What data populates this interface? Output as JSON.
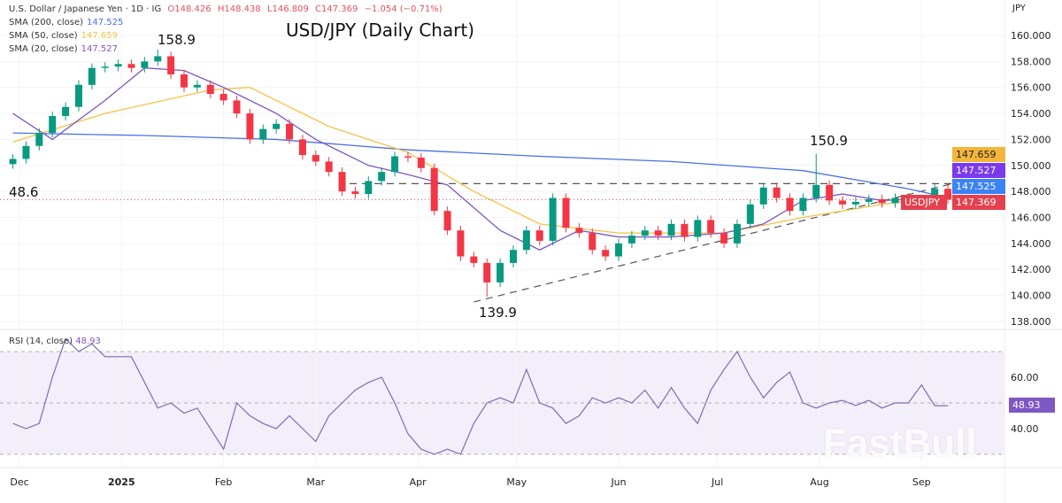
{
  "header": {
    "instrument": "U.S. Dollar / Japanese Yen · 1D · IG",
    "open": "O148.426",
    "high": "H148.438",
    "low": "L146.809",
    "close": "C147.369",
    "change": "−1.054 (−0.71%)",
    "sma200_label": "SMA (200, close)",
    "sma200_value": "147.525",
    "sma50_label": "SMA (50, close)",
    "sma50_value": "147.659",
    "sma20_label": "SMA (20, close)",
    "sma20_value": "147.527",
    "currency": "JPY",
    "rsi_label": "RSI (14, close)",
    "rsi_value": "48.93"
  },
  "watermark": "FastBull",
  "badges": {
    "sma50": "147.659",
    "sma20": "147.527",
    "sma200": "147.525",
    "symbol": "USDJPY",
    "last": "147.369",
    "rsi": "48.93"
  },
  "colors": {
    "up": "#089981",
    "down": "#f23645",
    "sma200": "#4a6fe3",
    "sma50": "#f3c245",
    "sma20": "#7e57c2",
    "rsi": "#7e6bb5"
  },
  "chart_data": {
    "type": "candlestick",
    "title": "USD/JPY (Daily Chart)",
    "ylim": [
      137,
      161.5
    ],
    "yticks": [
      "138.000",
      "140.000",
      "142.000",
      "144.000",
      "146.000",
      "148.000",
      "150.000",
      "152.000",
      "154.000",
      "156.000",
      "158.000",
      "160.000"
    ],
    "xticks": [
      {
        "date": "2024-12-01",
        "label": "Dec"
      },
      {
        "date": "2025-01-01",
        "label": "2025"
      },
      {
        "date": "2025-02-01",
        "label": "Feb"
      },
      {
        "date": "2025-03-01",
        "label": "Mar"
      },
      {
        "date": "2025-04-01",
        "label": "Apr"
      },
      {
        "date": "2025-05-01",
        "label": "May"
      },
      {
        "date": "2025-06-01",
        "label": "Jun"
      },
      {
        "date": "2025-07-01",
        "label": "Jul"
      },
      {
        "date": "2025-08-01",
        "label": "Aug"
      },
      {
        "date": "2025-09-01",
        "label": "Sep"
      }
    ],
    "dates": [
      "2024-11-29",
      "2024-12-03",
      "2024-12-07",
      "2024-12-11",
      "2024-12-15",
      "2024-12-19",
      "2024-12-23",
      "2024-12-27",
      "2024-12-31",
      "2025-01-04",
      "2025-01-08",
      "2025-01-12",
      "2025-01-16",
      "2025-01-20",
      "2025-01-24",
      "2025-01-28",
      "2025-02-01",
      "2025-02-05",
      "2025-02-09",
      "2025-02-13",
      "2025-02-17",
      "2025-02-21",
      "2025-02-25",
      "2025-03-01",
      "2025-03-05",
      "2025-03-09",
      "2025-03-13",
      "2025-03-17",
      "2025-03-21",
      "2025-03-25",
      "2025-03-29",
      "2025-04-02",
      "2025-04-06",
      "2025-04-10",
      "2025-04-14",
      "2025-04-18",
      "2025-04-22",
      "2025-04-26",
      "2025-04-30",
      "2025-05-04",
      "2025-05-08",
      "2025-05-12",
      "2025-05-16",
      "2025-05-20",
      "2025-05-24",
      "2025-05-28",
      "2025-06-01",
      "2025-06-05",
      "2025-06-09",
      "2025-06-13",
      "2025-06-17",
      "2025-06-21",
      "2025-06-25",
      "2025-06-29",
      "2025-07-03",
      "2025-07-07",
      "2025-07-11",
      "2025-07-15",
      "2025-07-19",
      "2025-07-23",
      "2025-07-27",
      "2025-07-31",
      "2025-08-04",
      "2025-08-08",
      "2025-08-12",
      "2025-08-16",
      "2025-08-20",
      "2025-08-24",
      "2025-08-28",
      "2025-09-01",
      "2025-09-05",
      "2025-09-09"
    ],
    "close": [
      150.5,
      151.5,
      152.5,
      153.8,
      154.5,
      156.2,
      157.5,
      157.6,
      157.8,
      157.5,
      158.0,
      158.4,
      157.0,
      156.0,
      156.2,
      155.5,
      155.0,
      154.0,
      152.0,
      152.8,
      153.2,
      152.0,
      150.8,
      150.3,
      149.5,
      148.0,
      147.8,
      148.8,
      149.5,
      150.7,
      150.6,
      149.8,
      146.5,
      145.0,
      143.0,
      142.5,
      141.0,
      142.5,
      143.5,
      145.0,
      144.2,
      147.5,
      145.2,
      144.8,
      143.5,
      143.0,
      144.0,
      144.6,
      145.0,
      144.6,
      145.5,
      144.5,
      145.8,
      144.8,
      144.0,
      145.5,
      147.0,
      148.3,
      147.5,
      146.5,
      147.5,
      148.5,
      147.3,
      147.0,
      147.2,
      147.4,
      147.1,
      147.5,
      147.0,
      147.2,
      148.2,
      147.369
    ],
    "high_overrides": {
      "11": 158.9,
      "61": 150.9
    },
    "low_overrides": {
      "36": 139.9
    },
    "sma200": {
      "dates": [
        "2024-11-29",
        "2025-01-08",
        "2025-02-17",
        "2025-03-29",
        "2025-05-08",
        "2025-06-17",
        "2025-07-27",
        "2025-08-28",
        "2025-09-09"
      ],
      "values": [
        152.5,
        152.3,
        152.0,
        151.2,
        150.7,
        150.3,
        149.6,
        148.2,
        147.525
      ]
    },
    "sma50": {
      "dates": [
        "2024-11-29",
        "2024-12-27",
        "2025-01-28",
        "2025-02-09",
        "2025-03-05",
        "2025-03-29",
        "2025-04-18",
        "2025-05-08",
        "2025-06-01",
        "2025-07-03",
        "2025-07-27",
        "2025-08-20",
        "2025-09-09"
      ],
      "values": [
        151.8,
        154.0,
        155.8,
        156.0,
        153.0,
        151.0,
        148.0,
        145.5,
        144.8,
        144.8,
        146.0,
        147.0,
        147.659
      ]
    },
    "sma20": {
      "dates": [
        "2024-11-29",
        "2024-12-11",
        "2024-12-27",
        "2025-01-08",
        "2025-01-20",
        "2025-02-01",
        "2025-02-17",
        "2025-03-01",
        "2025-03-17",
        "2025-03-29",
        "2025-04-10",
        "2025-04-26",
        "2025-05-08",
        "2025-05-20",
        "2025-06-01",
        "2025-06-17",
        "2025-07-03",
        "2025-07-15",
        "2025-07-27",
        "2025-08-08",
        "2025-08-20",
        "2025-09-09"
      ],
      "values": [
        154.0,
        152.0,
        155.0,
        157.5,
        157.3,
        156.0,
        154.0,
        152.0,
        150.0,
        149.3,
        148.5,
        145.0,
        143.5,
        145.0,
        144.5,
        144.5,
        144.8,
        145.5,
        147.3,
        147.8,
        147.3,
        147.527
      ]
    },
    "rsi": {
      "ylim": [
        25,
        77
      ],
      "ticks": [
        "40.00",
        "60.00"
      ],
      "bands": [
        30,
        50,
        70
      ],
      "values": [
        42,
        40,
        42,
        60,
        75,
        70,
        73,
        68,
        68,
        68,
        58,
        48,
        50,
        46,
        48,
        40,
        32,
        50,
        45,
        42,
        40,
        45,
        40,
        35,
        45,
        50,
        55,
        58,
        60,
        50,
        38,
        32,
        30,
        32,
        30,
        42,
        50,
        52,
        50,
        63,
        50,
        48,
        42,
        45,
        52,
        50,
        52,
        50,
        55,
        48,
        56,
        48,
        42,
        55,
        63,
        70,
        60,
        52,
        58,
        62,
        50,
        48,
        50,
        51,
        49,
        51,
        48,
        50,
        50,
        57,
        48.93,
        48.93
      ]
    },
    "annotations": [
      {
        "text": "158.9",
        "price": 158.9
      },
      {
        "text": "150.9",
        "price": 150.9
      },
      {
        "text": "139.9",
        "price": 139.9
      },
      {
        "text": "48.6",
        "price": 148.6
      }
    ],
    "resistance": 148.6,
    "trendline": [
      {
        "date": "2025-04-18",
        "price": 139.5
      },
      {
        "date": "2025-09-12",
        "price": 148.7
      }
    ]
  }
}
